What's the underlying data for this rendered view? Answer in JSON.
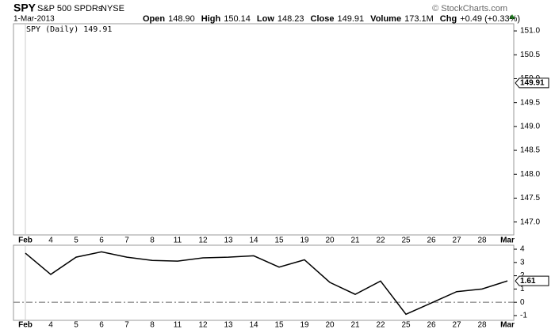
{
  "header": {
    "symbol": "SPY",
    "name": "S&P 500 SPDRs",
    "exchange": "NYSE",
    "date": "1-Mar-2013",
    "copyright": "© StockCharts.com",
    "stats": [
      {
        "label": "Open",
        "value": "148.90"
      },
      {
        "label": "High",
        "value": "150.14"
      },
      {
        "label": "Low",
        "value": "148.23"
      },
      {
        "label": "Close",
        "value": "149.91"
      },
      {
        "label": "Volume",
        "value": "173.1M"
      },
      {
        "label": "Chg",
        "value": "+0.49 (+0.33%)"
      }
    ]
  },
  "chart_data": [
    {
      "type": "line",
      "legend": "SPY (Daily) 149.91",
      "last_value": 149.91,
      "categories": [
        "Feb",
        "4",
        "5",
        "6",
        "7",
        "8",
        "11",
        "12",
        "13",
        "14",
        "15",
        "19",
        "20",
        "21",
        "22",
        "25",
        "26",
        "27",
        "28",
        "Mar"
      ],
      "ylim": [
        146.73,
        151.15
      ],
      "yticks": [
        {
          "value": 147,
          "label": "147.0"
        },
        {
          "value": 147.5,
          "label": "147.5"
        },
        {
          "value": 148,
          "label": "148.0"
        },
        {
          "value": 148.5,
          "label": "148.5"
        },
        {
          "value": 149,
          "label": "149.0"
        },
        {
          "value": 149.5,
          "label": "149.5"
        },
        {
          "value": 150,
          "label": "150.0"
        },
        {
          "value": 150.5,
          "label": "150.5"
        },
        {
          "value": 151,
          "label": "151.0"
        }
      ]
    },
    {
      "type": "line",
      "last_value": 1.61,
      "categories": [
        "Feb",
        "4",
        "5",
        "6",
        "7",
        "8",
        "11",
        "12",
        "13",
        "14",
        "15",
        "19",
        "20",
        "21",
        "22",
        "25",
        "26",
        "27",
        "28",
        "Mar"
      ],
      "series": [
        {
          "color": "#000000",
          "values": [
            3.7,
            2.1,
            3.4,
            3.8,
            3.4,
            3.15,
            3.1,
            3.35,
            3.4,
            3.5,
            2.65,
            3.2,
            1.5,
            0.6,
            1.6,
            -0.9,
            -0.05,
            0.8,
            1.0,
            1.61
          ]
        }
      ],
      "ylim": [
        -1.36,
        4.3
      ],
      "yticks": [
        4,
        3,
        2,
        1,
        0,
        -1
      ]
    }
  ]
}
